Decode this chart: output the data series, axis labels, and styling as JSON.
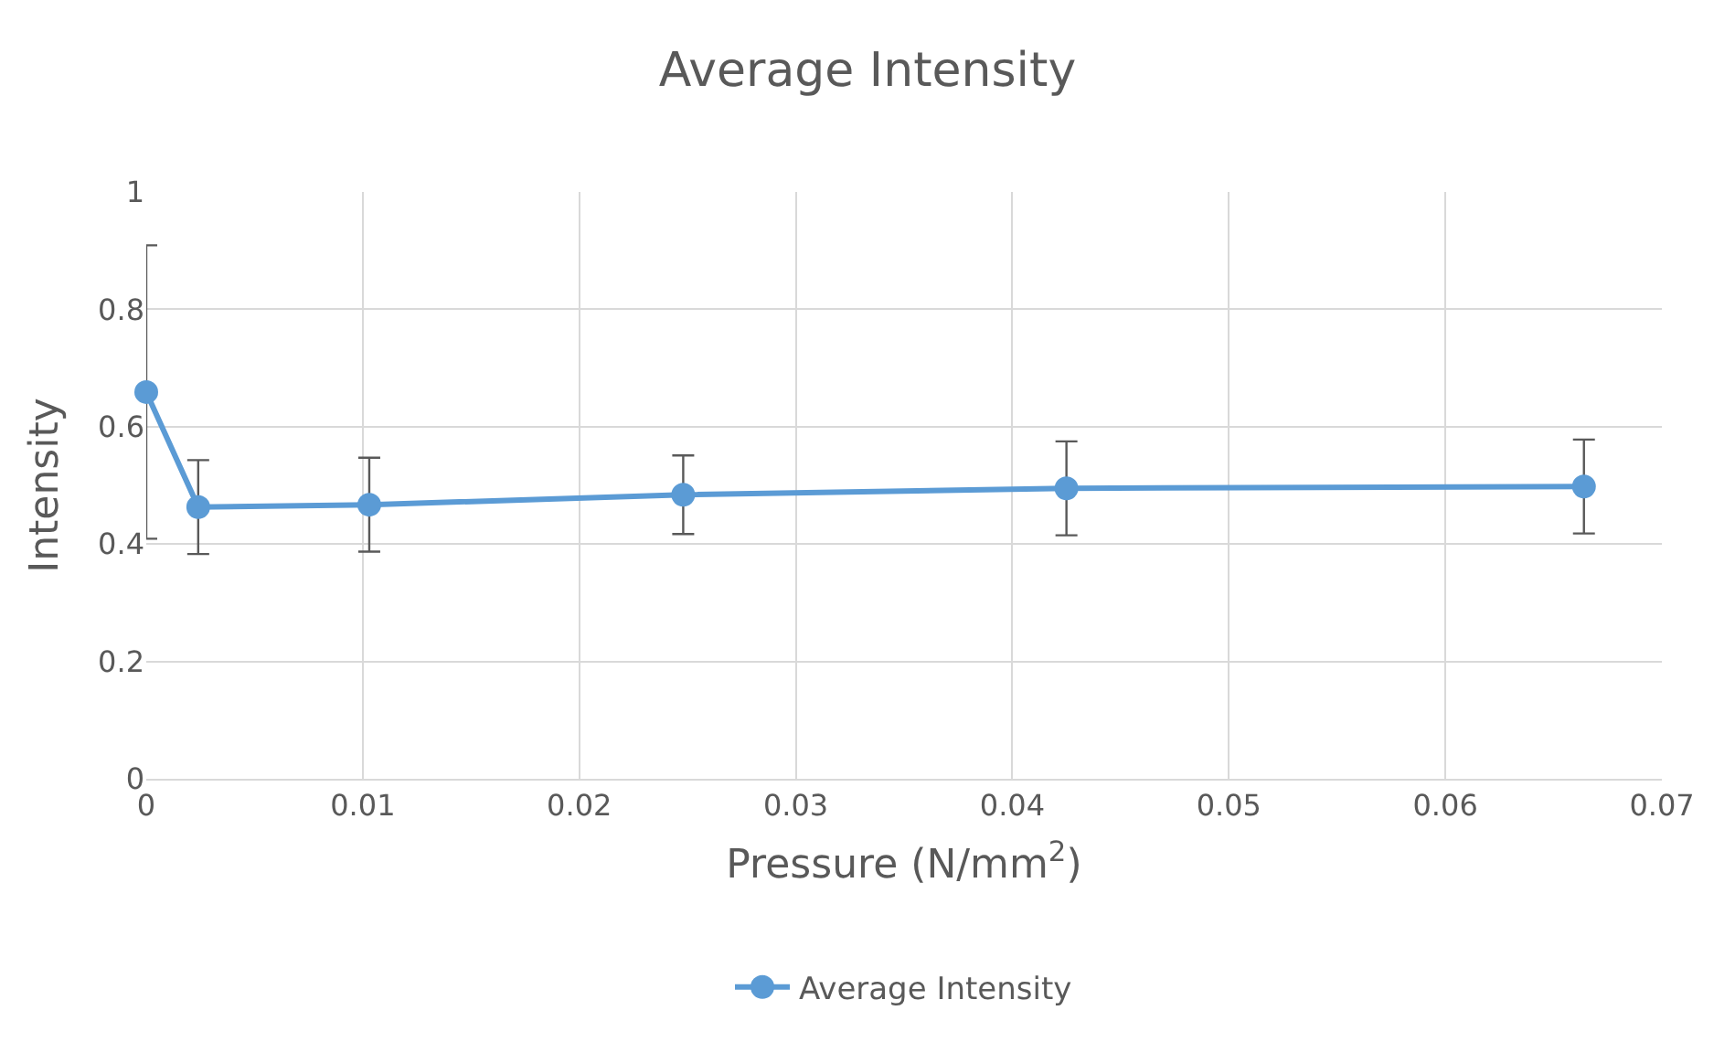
{
  "chart_data": {
    "type": "line",
    "title": "Average Intensity",
    "xlabel": "Pressure (N/mm$^{2}$)",
    "ylabel": "Intensity",
    "x": [
      0,
      0.0024,
      0.0103,
      0.0248,
      0.0425,
      0.0664
    ],
    "series": [
      {
        "name": "Average Intensity",
        "color": "#5b9bd5",
        "values": [
          0.659,
          0.463,
          0.467,
          0.484,
          0.495,
          0.498
        ],
        "errors": [
          0.25,
          0.08,
          0.08,
          0.067,
          0.08,
          0.08
        ]
      }
    ],
    "xlim": [
      0,
      0.07
    ],
    "xticks": [
      0,
      0.01,
      0.02,
      0.03,
      0.04,
      0.05,
      0.06,
      0.07
    ],
    "ylim": [
      0,
      1
    ],
    "yticks": [
      0,
      0.2,
      0.4,
      0.6,
      0.8,
      1
    ],
    "grid": true,
    "legend": "bottom",
    "marker": "circle",
    "line_style": "solid"
  }
}
